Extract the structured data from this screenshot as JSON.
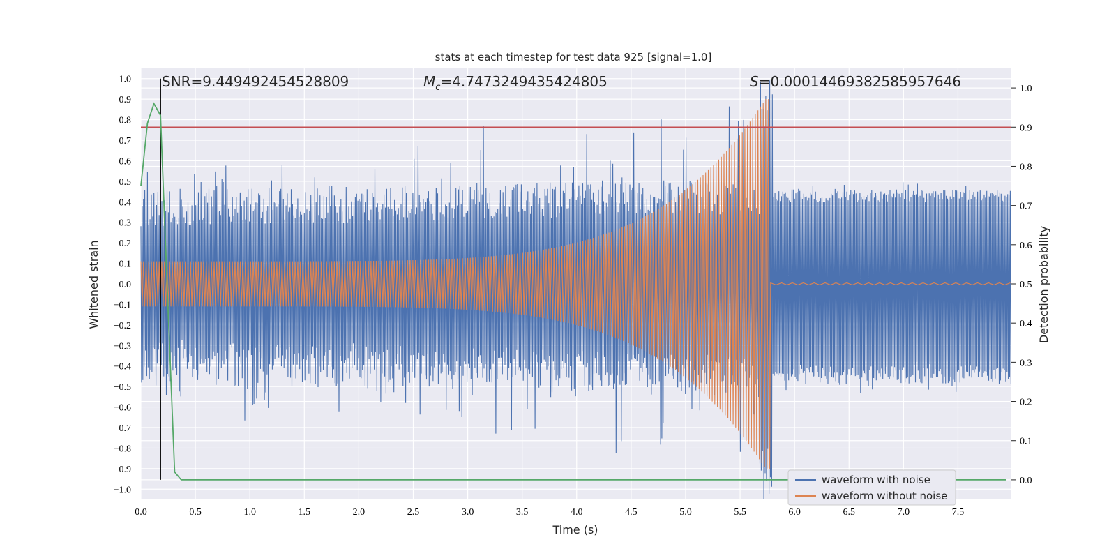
{
  "chart_data": {
    "type": "line",
    "title": "stats at each timestep for test data 925 [signal=1.0]",
    "xlabel": "Time (s)",
    "ylabel_left": "Whitened strain",
    "ylabel_right": "Detection probability",
    "xlim": [
      0.0,
      7.99
    ],
    "ylim_left": [
      -1.05,
      1.05
    ],
    "ylim_right": [
      -0.05,
      1.05
    ],
    "x_ticks": [
      0.0,
      0.5,
      1.0,
      1.5,
      2.0,
      2.5,
      3.0,
      3.5,
      4.0,
      4.5,
      5.0,
      5.5,
      6.0,
      6.5,
      7.0,
      7.5
    ],
    "x_tick_labels": [
      "0.0",
      "0.5",
      "1.0",
      "1.5",
      "2.0",
      "2.5",
      "3.0",
      "3.5",
      "4.0",
      "4.5",
      "5.0",
      "5.5",
      "6.0",
      "6.5",
      "7.0",
      "7.5"
    ],
    "y_left_ticks": [
      1.0,
      0.9,
      0.8,
      0.7,
      0.6,
      0.5,
      0.4,
      0.3,
      0.2,
      0.1,
      0.0,
      -0.1,
      -0.2,
      -0.3,
      -0.4,
      -0.5,
      -0.6,
      -0.7,
      -0.8,
      -0.9,
      -1.0
    ],
    "y_left_tick_labels": [
      "1.0",
      "0.9",
      "0.8",
      "0.7",
      "0.6",
      "0.5",
      "0.4",
      "0.3",
      "0.2",
      "0.1",
      "0.0",
      "−0.1",
      "−0.2",
      "−0.3",
      "−0.4",
      "−0.5",
      "−0.6",
      "−0.7",
      "−0.8",
      "−0.9",
      "−1.0"
    ],
    "y_right_ticks": [
      1.0,
      0.9,
      0.8,
      0.7,
      0.6,
      0.5,
      0.4,
      0.3,
      0.2,
      0.1,
      0.0
    ],
    "y_right_tick_labels": [
      "1.0",
      "0.9",
      "0.8",
      "0.7",
      "0.6",
      "0.5",
      "0.4",
      "0.3",
      "0.2",
      "0.1",
      "0.0"
    ],
    "annotations": {
      "snr": "SNR=9.449492454528809",
      "mc_prefix": "M",
      "mc_sub": "c",
      "mc_value": "=4.7473249435424805",
      "s_prefix": "S",
      "s_value": "=0.00014469382585957646"
    },
    "series": [
      {
        "name": "waveform with noise",
        "color": "#4c72b0",
        "axis": "left",
        "noise_band_before_merger": [
          -0.45,
          0.45
        ],
        "noise_band_after_merger": [
          -0.48,
          0.48
        ],
        "peak_max": 1.0,
        "peak_min": -0.98,
        "peak_time": 5.74
      },
      {
        "name": "waveform without noise",
        "color": "#dd8452",
        "axis": "left",
        "envelope_start": 0.07,
        "envelope_peak": 0.9,
        "merger_time": 5.78,
        "ringdown_level": 0.005
      },
      {
        "name": "detection probability",
        "color": "#55a868",
        "axis": "right",
        "x": [
          0.0,
          0.06,
          0.12,
          0.18,
          0.24,
          0.31,
          0.37,
          7.94
        ],
        "y": [
          0.75,
          0.91,
          0.96,
          0.93,
          0.5,
          0.02,
          0.0,
          0.0
        ]
      }
    ],
    "threshold_line": {
      "axis": "right",
      "value": 0.9,
      "color": "#c44e52"
    },
    "marker_line": {
      "x": 0.18,
      "color": "#000000"
    },
    "legend": {
      "position": "lower-right",
      "entries": [
        "waveform with noise",
        "waveform without noise"
      ]
    }
  }
}
